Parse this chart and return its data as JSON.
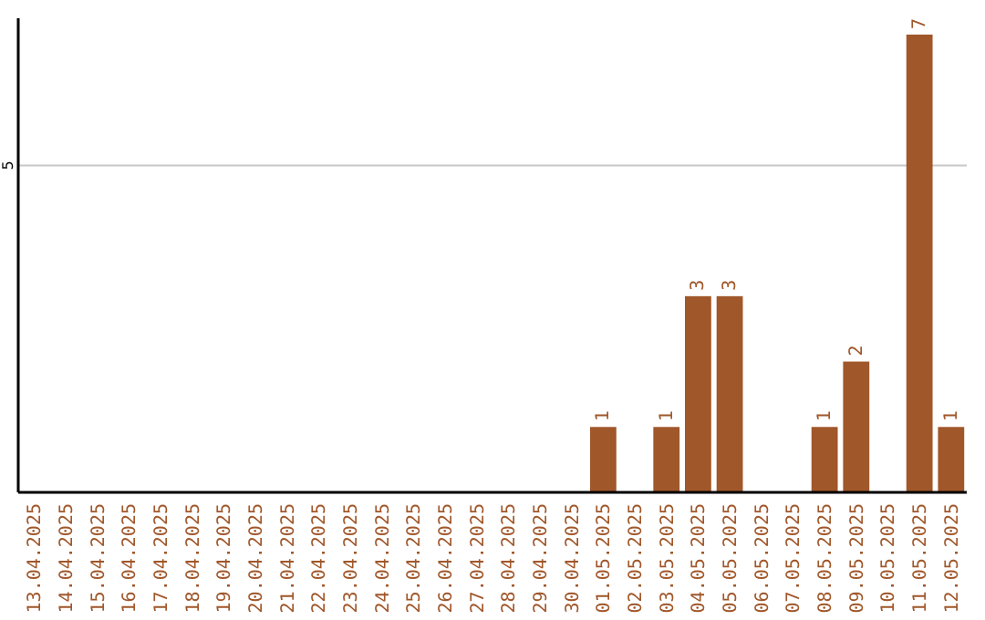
{
  "chart_data": {
    "type": "bar",
    "categories": [
      "13.04.2025",
      "14.04.2025",
      "15.04.2025",
      "16.04.2025",
      "17.04.2025",
      "18.04.2025",
      "19.04.2025",
      "20.04.2025",
      "21.04.2025",
      "22.04.2025",
      "23.04.2025",
      "24.04.2025",
      "25.04.2025",
      "26.04.2025",
      "27.04.2025",
      "28.04.2025",
      "29.04.2025",
      "30.04.2025",
      "01.05.2025",
      "02.05.2025",
      "03.05.2025",
      "04.05.2025",
      "05.05.2025",
      "06.05.2025",
      "07.05.2025",
      "08.05.2025",
      "09.05.2025",
      "10.05.2025",
      "11.05.2025",
      "12.05.2025"
    ],
    "values": [
      null,
      null,
      null,
      null,
      null,
      null,
      null,
      null,
      null,
      null,
      null,
      null,
      null,
      null,
      null,
      null,
      null,
      null,
      1,
      null,
      1,
      3,
      3,
      null,
      null,
      1,
      2,
      null,
      7,
      1
    ],
    "data_labels": true,
    "color": "#a0572a",
    "ylim": [
      0,
      7.25
    ],
    "yticks": [
      5
    ],
    "grid": "y"
  }
}
